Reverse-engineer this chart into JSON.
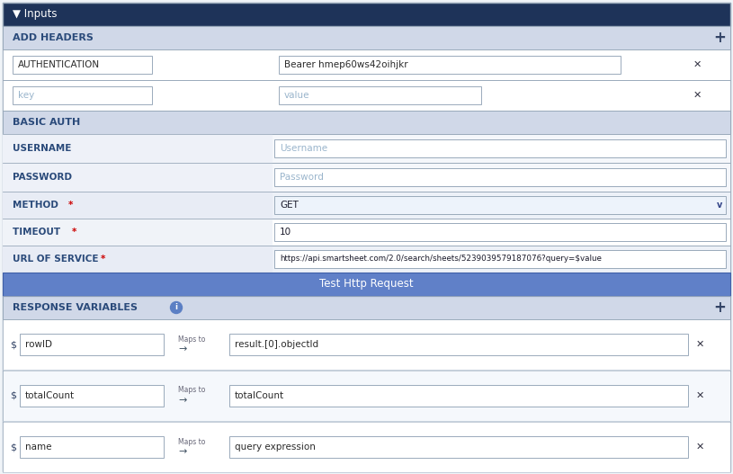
{
  "bg_color": "#f0f4f8",
  "header_bg": "#1e3359",
  "header_text_color": "#ffffff",
  "section_bg": "#d0d8e8",
  "section_text_color": "#1a1a2e",
  "panel_bg": "#ffffff",
  "outer_border": "#9aaabb",
  "field_border": "#9aaabb",
  "input_bg": "#ffffff",
  "input_placeholder_color": "#8aa8c8",
  "input_text_color": "#2a2a2a",
  "label_color": "#2a4a7a",
  "required_star_color": "#cc0000",
  "button_bg": "#6080c8",
  "button_text_color": "#ffffff",
  "button_text": "Test Http Request",
  "info_circle_color": "#5b7fc4",
  "x_color": "#333344",
  "plus_color": "#334466",
  "row_alt_bg": "#f7f9fc",
  "method_row_bg": "#edf1f8",
  "url_row_bg": "#edf1f8",
  "dropdown_bg": "#edf3fb",
  "title": "Inputs",
  "add_headers_label": "ADD HEADERS",
  "basic_auth_label": "BASIC AUTH",
  "response_vars_label": "RESPONSE VARIABLES",
  "auth_key": "AUTHENTICATION",
  "auth_value": "Bearer hmep60ws42oihjkr",
  "key_placeholder": "key",
  "value_placeholder": "value",
  "username_label": "USERNAME",
  "password_label": "PASSWORD",
  "username_placeholder": "Username",
  "password_placeholder": "Password",
  "method_label": "METHOD",
  "timeout_label": "TIMEOUT",
  "url_label": "URL OF SERVICE",
  "method_value": "GET",
  "timeout_value": "10",
  "url_value": "https://api.smartsheet.com/2.0/search/sheets/5239039579187076?query=$value",
  "response_rows": [
    {
      "var": "rowID",
      "maps_to": "result.[0].objectId"
    },
    {
      "var": "totalCount",
      "maps_to": "totalCount"
    },
    {
      "var": "name",
      "maps_to": "query expression"
    }
  ]
}
